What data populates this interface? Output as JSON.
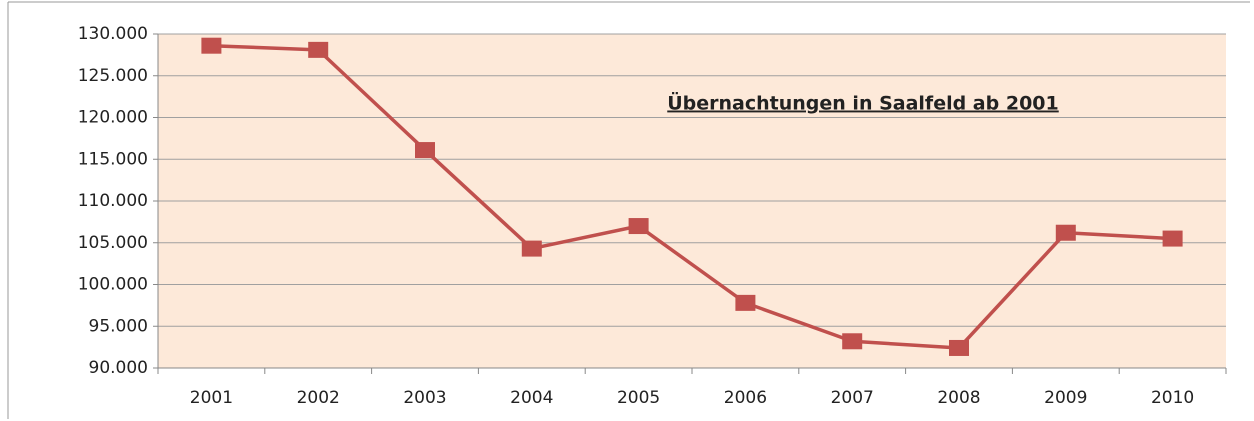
{
  "chart_data": {
    "type": "line",
    "title": "Übernachtungen in Saalfeld ab 2001",
    "categories": [
      "2001",
      "2002",
      "2003",
      "2004",
      "2005",
      "2006",
      "2007",
      "2008",
      "2009",
      "2010"
    ],
    "series": [
      {
        "name": "Übernachtungen",
        "color": "#c0504d",
        "values": [
          128600,
          128100,
          116100,
          104300,
          107000,
          97800,
          93200,
          92400,
          106200,
          105500
        ]
      }
    ],
    "ylim": [
      90000,
      130000
    ],
    "yticks": [
      {
        "value": 90000,
        "label": "90.000"
      },
      {
        "value": 95000,
        "label": "95.000"
      },
      {
        "value": 100000,
        "label": "100.000"
      },
      {
        "value": 105000,
        "label": "105.000"
      },
      {
        "value": 110000,
        "label": "110.000"
      },
      {
        "value": 115000,
        "label": "115.000"
      },
      {
        "value": 120000,
        "label": "120.000"
      },
      {
        "value": 125000,
        "label": "125.000"
      },
      {
        "value": 130000,
        "label": "130.000"
      }
    ],
    "grid": true
  }
}
